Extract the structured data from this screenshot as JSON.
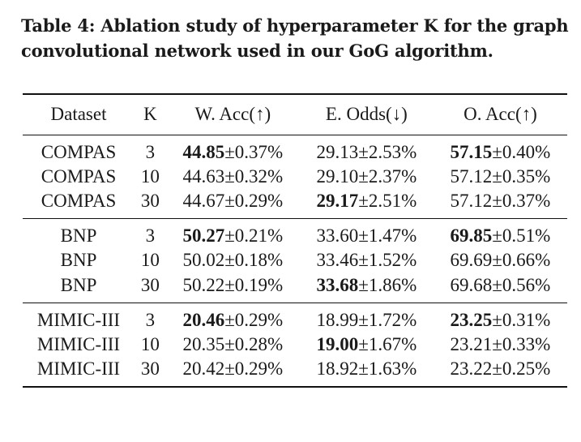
{
  "caption": "Table 4: Ablation study of hyperparameter K for the graph convolutional network used in our GoG algorithm.",
  "columns": [
    "Dataset",
    "K",
    "W. Acc(↑)",
    "E. Odds(↓)",
    "O. Acc(↑)"
  ],
  "groups": [
    {
      "rows": [
        {
          "dataset": "COMPAS",
          "k": "3",
          "w_acc": {
            "mean": "44.85",
            "std": "±0.37%",
            "bold": true
          },
          "e_odds": {
            "mean": "29.13",
            "std": "±2.53%",
            "bold": false
          },
          "o_acc": {
            "mean": "57.15",
            "std": "±0.40%",
            "bold": true
          }
        },
        {
          "dataset": "COMPAS",
          "k": "10",
          "w_acc": {
            "mean": "44.63",
            "std": "±0.32%",
            "bold": false
          },
          "e_odds": {
            "mean": "29.10",
            "std": "±2.37%",
            "bold": false
          },
          "o_acc": {
            "mean": "57.12",
            "std": "±0.35%",
            "bold": false
          }
        },
        {
          "dataset": "COMPAS",
          "k": "30",
          "w_acc": {
            "mean": "44.67",
            "std": "±0.29%",
            "bold": false
          },
          "e_odds": {
            "mean": "29.17",
            "std": "±2.51%",
            "bold": true
          },
          "o_acc": {
            "mean": "57.12",
            "std": "±0.37%",
            "bold": false
          }
        }
      ]
    },
    {
      "rows": [
        {
          "dataset": "BNP",
          "k": "3",
          "w_acc": {
            "mean": "50.27",
            "std": "±0.21%",
            "bold": true
          },
          "e_odds": {
            "mean": "33.60",
            "std": "±1.47%",
            "bold": false
          },
          "o_acc": {
            "mean": "69.85",
            "std": "±0.51%",
            "bold": true
          }
        },
        {
          "dataset": "BNP",
          "k": "10",
          "w_acc": {
            "mean": "50.02",
            "std": "±0.18%",
            "bold": false
          },
          "e_odds": {
            "mean": "33.46",
            "std": "±1.52%",
            "bold": false
          },
          "o_acc": {
            "mean": "69.69",
            "std": "±0.66%",
            "bold": false
          }
        },
        {
          "dataset": "BNP",
          "k": "30",
          "w_acc": {
            "mean": "50.22",
            "std": "±0.19%",
            "bold": false
          },
          "e_odds": {
            "mean": "33.68",
            "std": "±1.86%",
            "bold": true
          },
          "o_acc": {
            "mean": "69.68",
            "std": "±0.56%",
            "bold": false
          }
        }
      ]
    },
    {
      "rows": [
        {
          "dataset": "MIMIC-III",
          "k": "3",
          "w_acc": {
            "mean": "20.46",
            "std": "±0.29%",
            "bold": true
          },
          "e_odds": {
            "mean": "18.99",
            "std": "±1.72%",
            "bold": false
          },
          "o_acc": {
            "mean": "23.25",
            "std": "±0.31%",
            "bold": true
          }
        },
        {
          "dataset": "MIMIC-III",
          "k": "10",
          "w_acc": {
            "mean": "20.35",
            "std": "±0.28%",
            "bold": false
          },
          "e_odds": {
            "mean": "19.00",
            "std": "±1.67%",
            "bold": true
          },
          "o_acc": {
            "mean": "23.21",
            "std": "±0.33%",
            "bold": false
          }
        },
        {
          "dataset": "MIMIC-III",
          "k": "30",
          "w_acc": {
            "mean": "20.42",
            "std": "±0.29%",
            "bold": false
          },
          "e_odds": {
            "mean": "18.92",
            "std": "±1.63%",
            "bold": false
          },
          "o_acc": {
            "mean": "23.22",
            "std": "±0.25%",
            "bold": false
          }
        }
      ]
    }
  ]
}
